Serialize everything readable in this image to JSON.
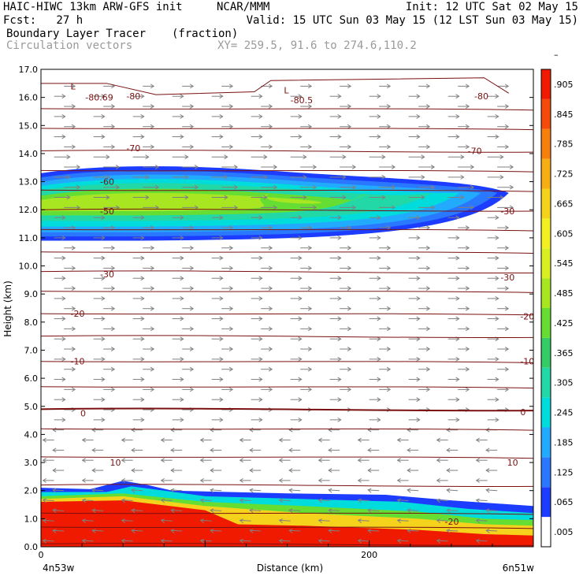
{
  "header": {
    "title_left": "HAIC-HIWC 13km ARW-GFS init",
    "title_center": "NCAR/MMM",
    "init": "Init: 12 UTC Sat 02 May 15",
    "fcst": "Fcst:   27 h",
    "valid": "Valid: 15 UTC Sun 03 May 15 (12 LST Sun 03 May 15)",
    "field": "Boundary Layer Tracer",
    "units": "(fraction)",
    "vectors": "Circulation vectors",
    "xy": "XY= 259.5, 91.6 to 274.6,110.2"
  },
  "colors": {
    "contour": "#7a1010",
    "vector": "#808080",
    "colorbar": [
      "#ffffff",
      "#1c3cff",
      "#2a78ff",
      "#22aaff",
      "#00dcdc",
      "#22d8a6",
      "#33cc66",
      "#66dd33",
      "#a8e622",
      "#d8f022",
      "#f2f022",
      "#f5d21c",
      "#f7ae14",
      "#f7800c",
      "#f54a08",
      "#ef1a00"
    ]
  },
  "chart_data": {
    "type": "contour cross-section",
    "ylabel": "Height (km)",
    "xlabel": "Distance (km)",
    "x_left_label": "4n53w",
    "x_right_label": "6n51w",
    "xlim": [
      0,
      300
    ],
    "ylim": [
      0,
      17
    ],
    "x_ticks": [
      "0",
      "200"
    ],
    "y_ticks": [
      "0.0",
      "1.0",
      "2.0",
      "3.0",
      "4.0",
      "5.0",
      "6.0",
      "7.0",
      "8.0",
      "9.0",
      "10.0",
      "11.0",
      "12.0",
      "13.0",
      "14.0",
      "15.0",
      "16.0",
      "17.0"
    ],
    "colorbar_labels": [
      ".005",
      ".065",
      ".125",
      ".185",
      ".245",
      ".305",
      ".365",
      ".425",
      ".485",
      ".545",
      ".605",
      ".665",
      ".725",
      ".785",
      ".845",
      ".905",
      "–"
    ],
    "contour_labels": [
      {
        "text": "-80.69",
        "x": 27,
        "y": 16.0
      },
      {
        "text": "-80",
        "x": 52,
        "y": 16.05
      },
      {
        "text": "L",
        "x": 18,
        "y": 16.4
      },
      {
        "text": "L",
        "x": 148,
        "y": 16.25
      },
      {
        "text": "-80.5",
        "x": 152,
        "y": 15.9
      },
      {
        "text": "-80",
        "x": 264,
        "y": 16.05
      },
      {
        "text": "-70",
        "x": 52,
        "y": 14.2
      },
      {
        "text": "-70",
        "x": 260,
        "y": 14.1
      },
      {
        "text": "-60",
        "x": 36,
        "y": 13.0
      },
      {
        "text": "-50",
        "x": 36,
        "y": 11.95
      },
      {
        "text": "-30",
        "x": 280,
        "y": 11.95
      },
      {
        "text": "-30",
        "x": 36,
        "y": 9.7
      },
      {
        "text": "-30",
        "x": 280,
        "y": 9.6
      },
      {
        "text": "-20",
        "x": 18,
        "y": 8.3
      },
      {
        "text": "-20",
        "x": 292,
        "y": 8.2
      },
      {
        "text": "-10",
        "x": 18,
        "y": 6.6
      },
      {
        "text": "-10",
        "x": 292,
        "y": 6.6
      },
      {
        "text": "0",
        "x": 24,
        "y": 4.75
      },
      {
        "text": "0",
        "x": 292,
        "y": 4.8
      },
      {
        "text": "10",
        "x": 42,
        "y": 3.0
      },
      {
        "text": "10",
        "x": 284,
        "y": 3.0
      },
      {
        "text": "-20",
        "x": 246,
        "y": 0.9
      }
    ]
  }
}
